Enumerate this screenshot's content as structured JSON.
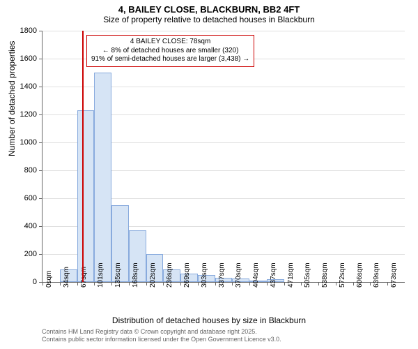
{
  "title": "4, BAILEY CLOSE, BLACKBURN, BB2 4FT",
  "subtitle": "Size of property relative to detached houses in Blackburn",
  "chart": {
    "type": "histogram",
    "ylabel": "Number of detached properties",
    "xlabel": "Distribution of detached houses by size in Blackburn",
    "ylim": [
      0,
      1800
    ],
    "ytick_step": 200,
    "bar_fill": "#d6e4f5",
    "bar_border": "#88aadd",
    "grid_color": "#e0e0e0",
    "axis_color": "#666666",
    "background_color": "#ffffff",
    "categories": [
      "0sqm",
      "34sqm",
      "67sqm",
      "101sqm",
      "135sqm",
      "168sqm",
      "202sqm",
      "236sqm",
      "269sqm",
      "303sqm",
      "337sqm",
      "370sqm",
      "404sqm",
      "437sqm",
      "471sqm",
      "505sqm",
      "538sqm",
      "572sqm",
      "606sqm",
      "639sqm",
      "673sqm"
    ],
    "values": [
      0,
      90,
      1230,
      1500,
      550,
      370,
      200,
      90,
      60,
      50,
      30,
      25,
      10,
      20,
      0,
      0,
      0,
      0,
      0,
      0,
      0
    ],
    "bar_width_ratio": 1.0,
    "marker": {
      "color": "#cc0000",
      "x_category_index": 2.3,
      "lines": [
        "4 BAILEY CLOSE: 78sqm",
        "← 8% of detached houses are smaller (320)",
        "91% of semi-detached houses are larger (3,438) →"
      ]
    }
  },
  "footer": {
    "line1": "Contains HM Land Registry data © Crown copyright and database right 2025.",
    "line2": "Contains public sector information licensed under the Open Government Licence v3.0."
  },
  "fonts": {
    "title_size": 13,
    "subtitle_size": 12,
    "axis_label_size": 12,
    "tick_size": 11,
    "anno_size": 10,
    "footer_size": 9
  }
}
